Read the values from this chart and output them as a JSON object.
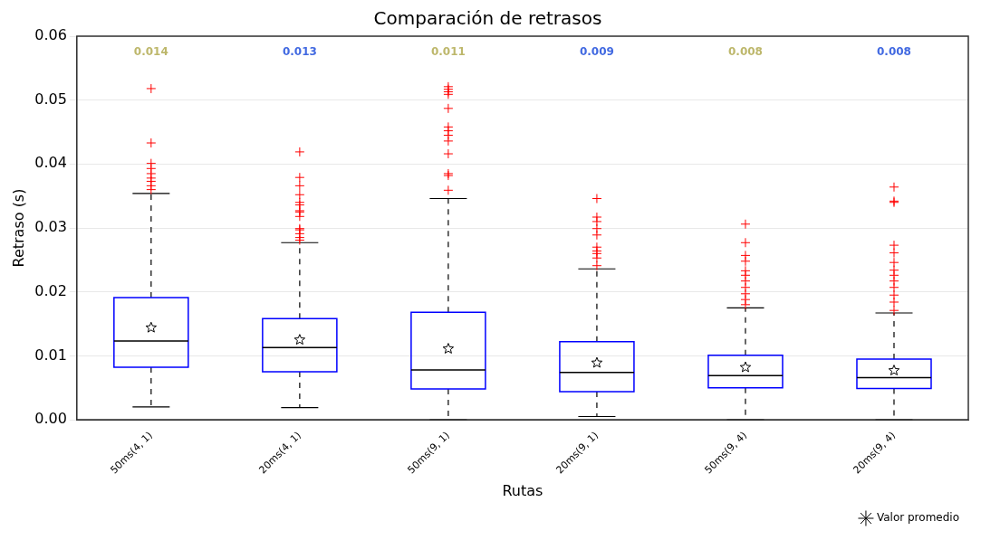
{
  "chart_data": {
    "type": "box",
    "title": "Comparación de retrasos",
    "xlabel": "Rutas",
    "ylabel": "Retraso (s)",
    "categories": [
      "50ms(4, 1)",
      "20ms(4, 1)",
      "50ms(9, 1)",
      "20ms(9, 1)",
      "50ms(9, 4)",
      "20ms(9, 4)"
    ],
    "color": "#0000ff",
    "boxes": [
      {
        "low": 0.002,
        "q1": 0.0082,
        "median": 0.0123,
        "q3": 0.0191,
        "high": 0.0354,
        "outliers": [
          0.0518,
          0.0433,
          0.0401,
          0.0393,
          0.0385,
          0.0378,
          0.0373,
          0.0366,
          0.036
        ]
      },
      {
        "low": 0.0019,
        "q1": 0.0075,
        "median": 0.0113,
        "q3": 0.0158,
        "high": 0.0277,
        "outliers": [
          0.0419,
          0.0379,
          0.0366,
          0.0352,
          0.034,
          0.0336,
          0.0327,
          0.0325,
          0.0318,
          0.0299,
          0.0297,
          0.0291,
          0.0285,
          0.0281
        ]
      },
      {
        "low": 0.0,
        "q1": 0.0048,
        "median": 0.0078,
        "q3": 0.0168,
        "high": 0.0346,
        "outliers": [
          0.0521,
          0.0517,
          0.0513,
          0.0509,
          0.0487,
          0.0458,
          0.0452,
          0.0445,
          0.0436,
          0.0416,
          0.0385,
          0.0382,
          0.0359
        ]
      },
      {
        "low": 0.0005,
        "q1": 0.0044,
        "median": 0.0074,
        "q3": 0.0122,
        "high": 0.0236,
        "outliers": [
          0.0346,
          0.0317,
          0.031,
          0.0299,
          0.0289,
          0.027,
          0.0264,
          0.026,
          0.0253,
          0.0241
        ]
      },
      {
        "low": 0.0,
        "q1": 0.005,
        "median": 0.0069,
        "q3": 0.0101,
        "high": 0.0175,
        "outliers": [
          0.0306,
          0.0277,
          0.0257,
          0.0248,
          0.0233,
          0.0226,
          0.0217,
          0.0207,
          0.0197,
          0.0188,
          0.018
        ]
      },
      {
        "low": 0.0,
        "q1": 0.0049,
        "median": 0.0066,
        "q3": 0.0095,
        "high": 0.0167,
        "outliers": [
          0.0364,
          0.0342,
          0.034,
          0.0273,
          0.0261,
          0.0246,
          0.0234,
          0.0226,
          0.0217,
          0.0207,
          0.0195,
          0.0184,
          0.0171
        ]
      }
    ],
    "series": [
      {
        "name": "Valor promedio",
        "type": "scatter",
        "color": "#000000",
        "marker": "star",
        "values": [
          0.0144,
          0.0125,
          0.0111,
          0.0089,
          0.0082,
          0.0077
        ]
      }
    ],
    "annotations": [
      "0.014",
      "0.013",
      "0.011",
      "0.009",
      "0.008",
      "0.008"
    ],
    "ylim": [
      0,
      0.06
    ],
    "yticks": [
      {
        "value": 0,
        "label": "0.00"
      },
      {
        "value": 0.01,
        "label": "0.01"
      },
      {
        "value": 0.02,
        "label": "0.02"
      },
      {
        "value": 0.03,
        "label": "0.03"
      },
      {
        "value": 0.04,
        "label": "0.04"
      },
      {
        "value": 0.05,
        "label": "0.05"
      },
      {
        "value": 0.06,
        "label": "0.06"
      }
    ],
    "grid": "y",
    "legend": "bottom right"
  }
}
